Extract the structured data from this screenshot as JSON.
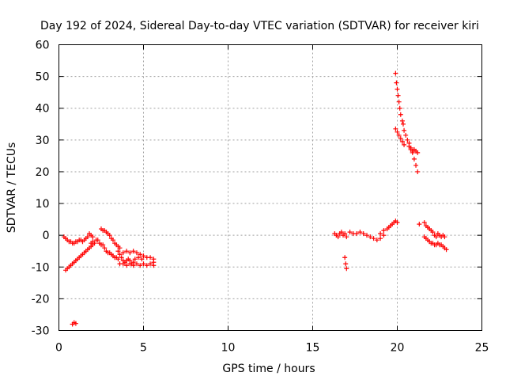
{
  "chart_data": {
    "type": "scatter",
    "title": "Day 192 of 2024, Sidereal Day-to-day VTEC variation (SDTVAR) for receiver kiri",
    "xlabel": "GPS time / hours",
    "ylabel": "SDTVAR / TECUs",
    "xlim": [
      0,
      25
    ],
    "ylim": [
      -30,
      60
    ],
    "x_ticks": [
      0,
      5,
      10,
      15,
      20,
      25
    ],
    "y_ticks": [
      -30,
      -20,
      -10,
      0,
      10,
      20,
      30,
      40,
      50,
      60
    ],
    "grid": true,
    "marker": "+",
    "color": "#ff0000",
    "series": [
      {
        "name": "SDTVAR",
        "points": [
          [
            0.3,
            -0.5
          ],
          [
            0.4,
            -1.0
          ],
          [
            0.5,
            -1.5
          ],
          [
            0.6,
            -2.0
          ],
          [
            0.7,
            -2.0
          ],
          [
            0.8,
            -2.5
          ],
          [
            0.9,
            -2.5
          ],
          [
            1.0,
            -2.0
          ],
          [
            1.1,
            -2.0
          ],
          [
            1.2,
            -1.5
          ],
          [
            1.3,
            -1.5
          ],
          [
            1.4,
            -2.0
          ],
          [
            1.5,
            -1.5
          ],
          [
            1.6,
            -1.0
          ],
          [
            1.7,
            -0.5
          ],
          [
            1.8,
            0.5
          ],
          [
            1.9,
            0.0
          ],
          [
            2.0,
            -0.5
          ],
          [
            0.4,
            -11.0
          ],
          [
            0.5,
            -10.5
          ],
          [
            0.6,
            -10.0
          ],
          [
            0.7,
            -9.5
          ],
          [
            0.8,
            -9.0
          ],
          [
            0.9,
            -8.5
          ],
          [
            1.0,
            -8.0
          ],
          [
            1.1,
            -7.5
          ],
          [
            1.2,
            -7.0
          ],
          [
            1.3,
            -6.5
          ],
          [
            1.4,
            -6.0
          ],
          [
            1.5,
            -5.5
          ],
          [
            1.6,
            -5.0
          ],
          [
            1.7,
            -4.5
          ],
          [
            1.8,
            -4.0
          ],
          [
            1.9,
            -3.5
          ],
          [
            2.0,
            -3.0
          ],
          [
            0.8,
            -28.0
          ],
          [
            0.9,
            -27.5
          ],
          [
            1.0,
            -27.8
          ],
          [
            1.9,
            -2.5
          ],
          [
            2.0,
            -2.0
          ],
          [
            2.1,
            -2.5
          ],
          [
            2.2,
            -1.5
          ],
          [
            2.3,
            -1.5
          ],
          [
            2.4,
            -2.5
          ],
          [
            2.5,
            -3.0
          ],
          [
            2.5,
            2.0
          ],
          [
            2.6,
            1.5
          ],
          [
            2.7,
            1.5
          ],
          [
            2.8,
            1.0
          ],
          [
            2.9,
            0.5
          ],
          [
            3.0,
            0.0
          ],
          [
            3.1,
            -1.0
          ],
          [
            3.2,
            -1.5
          ],
          [
            3.3,
            -2.5
          ],
          [
            3.4,
            -3.0
          ],
          [
            3.5,
            -3.5
          ],
          [
            3.6,
            -4.0
          ],
          [
            2.6,
            -3.0
          ],
          [
            2.7,
            -4.0
          ],
          [
            2.8,
            -5.0
          ],
          [
            2.9,
            -5.5
          ],
          [
            3.0,
            -5.5
          ],
          [
            3.1,
            -6.0
          ],
          [
            3.2,
            -6.5
          ],
          [
            3.3,
            -7.0
          ],
          [
            3.4,
            -7.0
          ],
          [
            3.5,
            -7.5
          ],
          [
            3.5,
            -5.0
          ],
          [
            3.6,
            -6.0
          ],
          [
            3.7,
            -7.0
          ],
          [
            3.8,
            -8.0
          ],
          [
            3.9,
            -8.5
          ],
          [
            4.0,
            -8.0
          ],
          [
            4.1,
            -7.5
          ],
          [
            4.2,
            -8.0
          ],
          [
            4.3,
            -9.0
          ],
          [
            4.4,
            -8.5
          ],
          [
            3.6,
            -9.0
          ],
          [
            3.8,
            -9.0
          ],
          [
            4.0,
            -9.5
          ],
          [
            4.2,
            -9.0
          ],
          [
            4.4,
            -9.5
          ],
          [
            4.6,
            -9.0
          ],
          [
            4.8,
            -9.5
          ],
          [
            5.0,
            -9.0
          ],
          [
            5.2,
            -9.5
          ],
          [
            5.4,
            -9.0
          ],
          [
            5.6,
            -9.5
          ],
          [
            3.8,
            -5.5
          ],
          [
            4.0,
            -5.0
          ],
          [
            4.2,
            -5.5
          ],
          [
            4.4,
            -5.0
          ],
          [
            4.6,
            -5.5
          ],
          [
            4.8,
            -6.0
          ],
          [
            4.5,
            -7.5
          ],
          [
            4.7,
            -7.0
          ],
          [
            4.9,
            -7.5
          ],
          [
            5.0,
            -6.5
          ],
          [
            5.2,
            -7.0
          ],
          [
            5.4,
            -7.0
          ],
          [
            5.6,
            -7.5
          ],
          [
            5.6,
            -8.5
          ],
          [
            16.3,
            0.5
          ],
          [
            16.4,
            0.0
          ],
          [
            16.5,
            -0.5
          ],
          [
            16.6,
            0.5
          ],
          [
            16.7,
            1.0
          ],
          [
            16.8,
            0.0
          ],
          [
            16.9,
            0.5
          ],
          [
            17.0,
            -0.5
          ],
          [
            16.9,
            -7.0
          ],
          [
            16.95,
            -9.0
          ],
          [
            17.0,
            -10.5
          ],
          [
            17.2,
            1.0
          ],
          [
            17.4,
            0.5
          ],
          [
            17.6,
            0.5
          ],
          [
            17.8,
            1.0
          ],
          [
            18.0,
            0.5
          ],
          [
            18.2,
            0.0
          ],
          [
            18.4,
            -0.5
          ],
          [
            18.6,
            -1.0
          ],
          [
            18.8,
            -1.5
          ],
          [
            19.0,
            -1.0
          ],
          [
            19.2,
            0.0
          ],
          [
            19.0,
            0.5
          ],
          [
            19.2,
            1.5
          ],
          [
            19.4,
            2.0
          ],
          [
            19.5,
            2.5
          ],
          [
            19.6,
            3.0
          ],
          [
            19.7,
            3.5
          ],
          [
            19.8,
            4.0
          ],
          [
            19.9,
            4.5
          ],
          [
            20.0,
            4.0
          ],
          [
            19.9,
            51.0
          ],
          [
            19.95,
            48.0
          ],
          [
            20.0,
            46.0
          ],
          [
            20.05,
            44.0
          ],
          [
            20.1,
            42.0
          ],
          [
            20.15,
            40.0
          ],
          [
            20.2,
            38.0
          ],
          [
            20.3,
            36.0
          ],
          [
            20.35,
            35.0
          ],
          [
            20.4,
            33.0
          ],
          [
            20.5,
            31.5
          ],
          [
            20.6,
            30.0
          ],
          [
            20.7,
            29.0
          ],
          [
            20.8,
            27.5
          ],
          [
            20.9,
            26.0
          ],
          [
            21.0,
            24.0
          ],
          [
            21.1,
            22.0
          ],
          [
            21.2,
            20.0
          ],
          [
            19.9,
            33.5
          ],
          [
            20.0,
            32.5
          ],
          [
            20.1,
            31.5
          ],
          [
            20.2,
            30.5
          ],
          [
            20.3,
            29.5
          ],
          [
            20.4,
            28.5
          ],
          [
            20.7,
            28.0
          ],
          [
            20.8,
            27.0
          ],
          [
            20.9,
            26.5
          ],
          [
            21.0,
            27.0
          ],
          [
            21.1,
            26.5
          ],
          [
            21.2,
            26.0
          ],
          [
            21.3,
            3.5
          ],
          [
            21.6,
            4.0
          ],
          [
            21.7,
            3.0
          ],
          [
            21.8,
            2.5
          ],
          [
            21.9,
            2.0
          ],
          [
            22.0,
            1.5
          ],
          [
            22.1,
            1.0
          ],
          [
            22.2,
            0.0
          ],
          [
            22.3,
            -0.5
          ],
          [
            22.4,
            0.5
          ],
          [
            22.5,
            0.0
          ],
          [
            22.6,
            -0.5
          ],
          [
            22.7,
            0.0
          ],
          [
            22.8,
            -0.5
          ],
          [
            21.6,
            -0.5
          ],
          [
            21.7,
            -1.0
          ],
          [
            21.8,
            -1.5
          ],
          [
            21.9,
            -2.0
          ],
          [
            22.0,
            -2.5
          ],
          [
            22.1,
            -2.5
          ],
          [
            22.2,
            -3.0
          ],
          [
            22.3,
            -3.0
          ],
          [
            22.4,
            -2.5
          ],
          [
            22.5,
            -3.0
          ],
          [
            22.6,
            -3.0
          ],
          [
            22.7,
            -3.5
          ],
          [
            22.8,
            -4.0
          ],
          [
            22.9,
            -4.5
          ]
        ]
      }
    ]
  }
}
